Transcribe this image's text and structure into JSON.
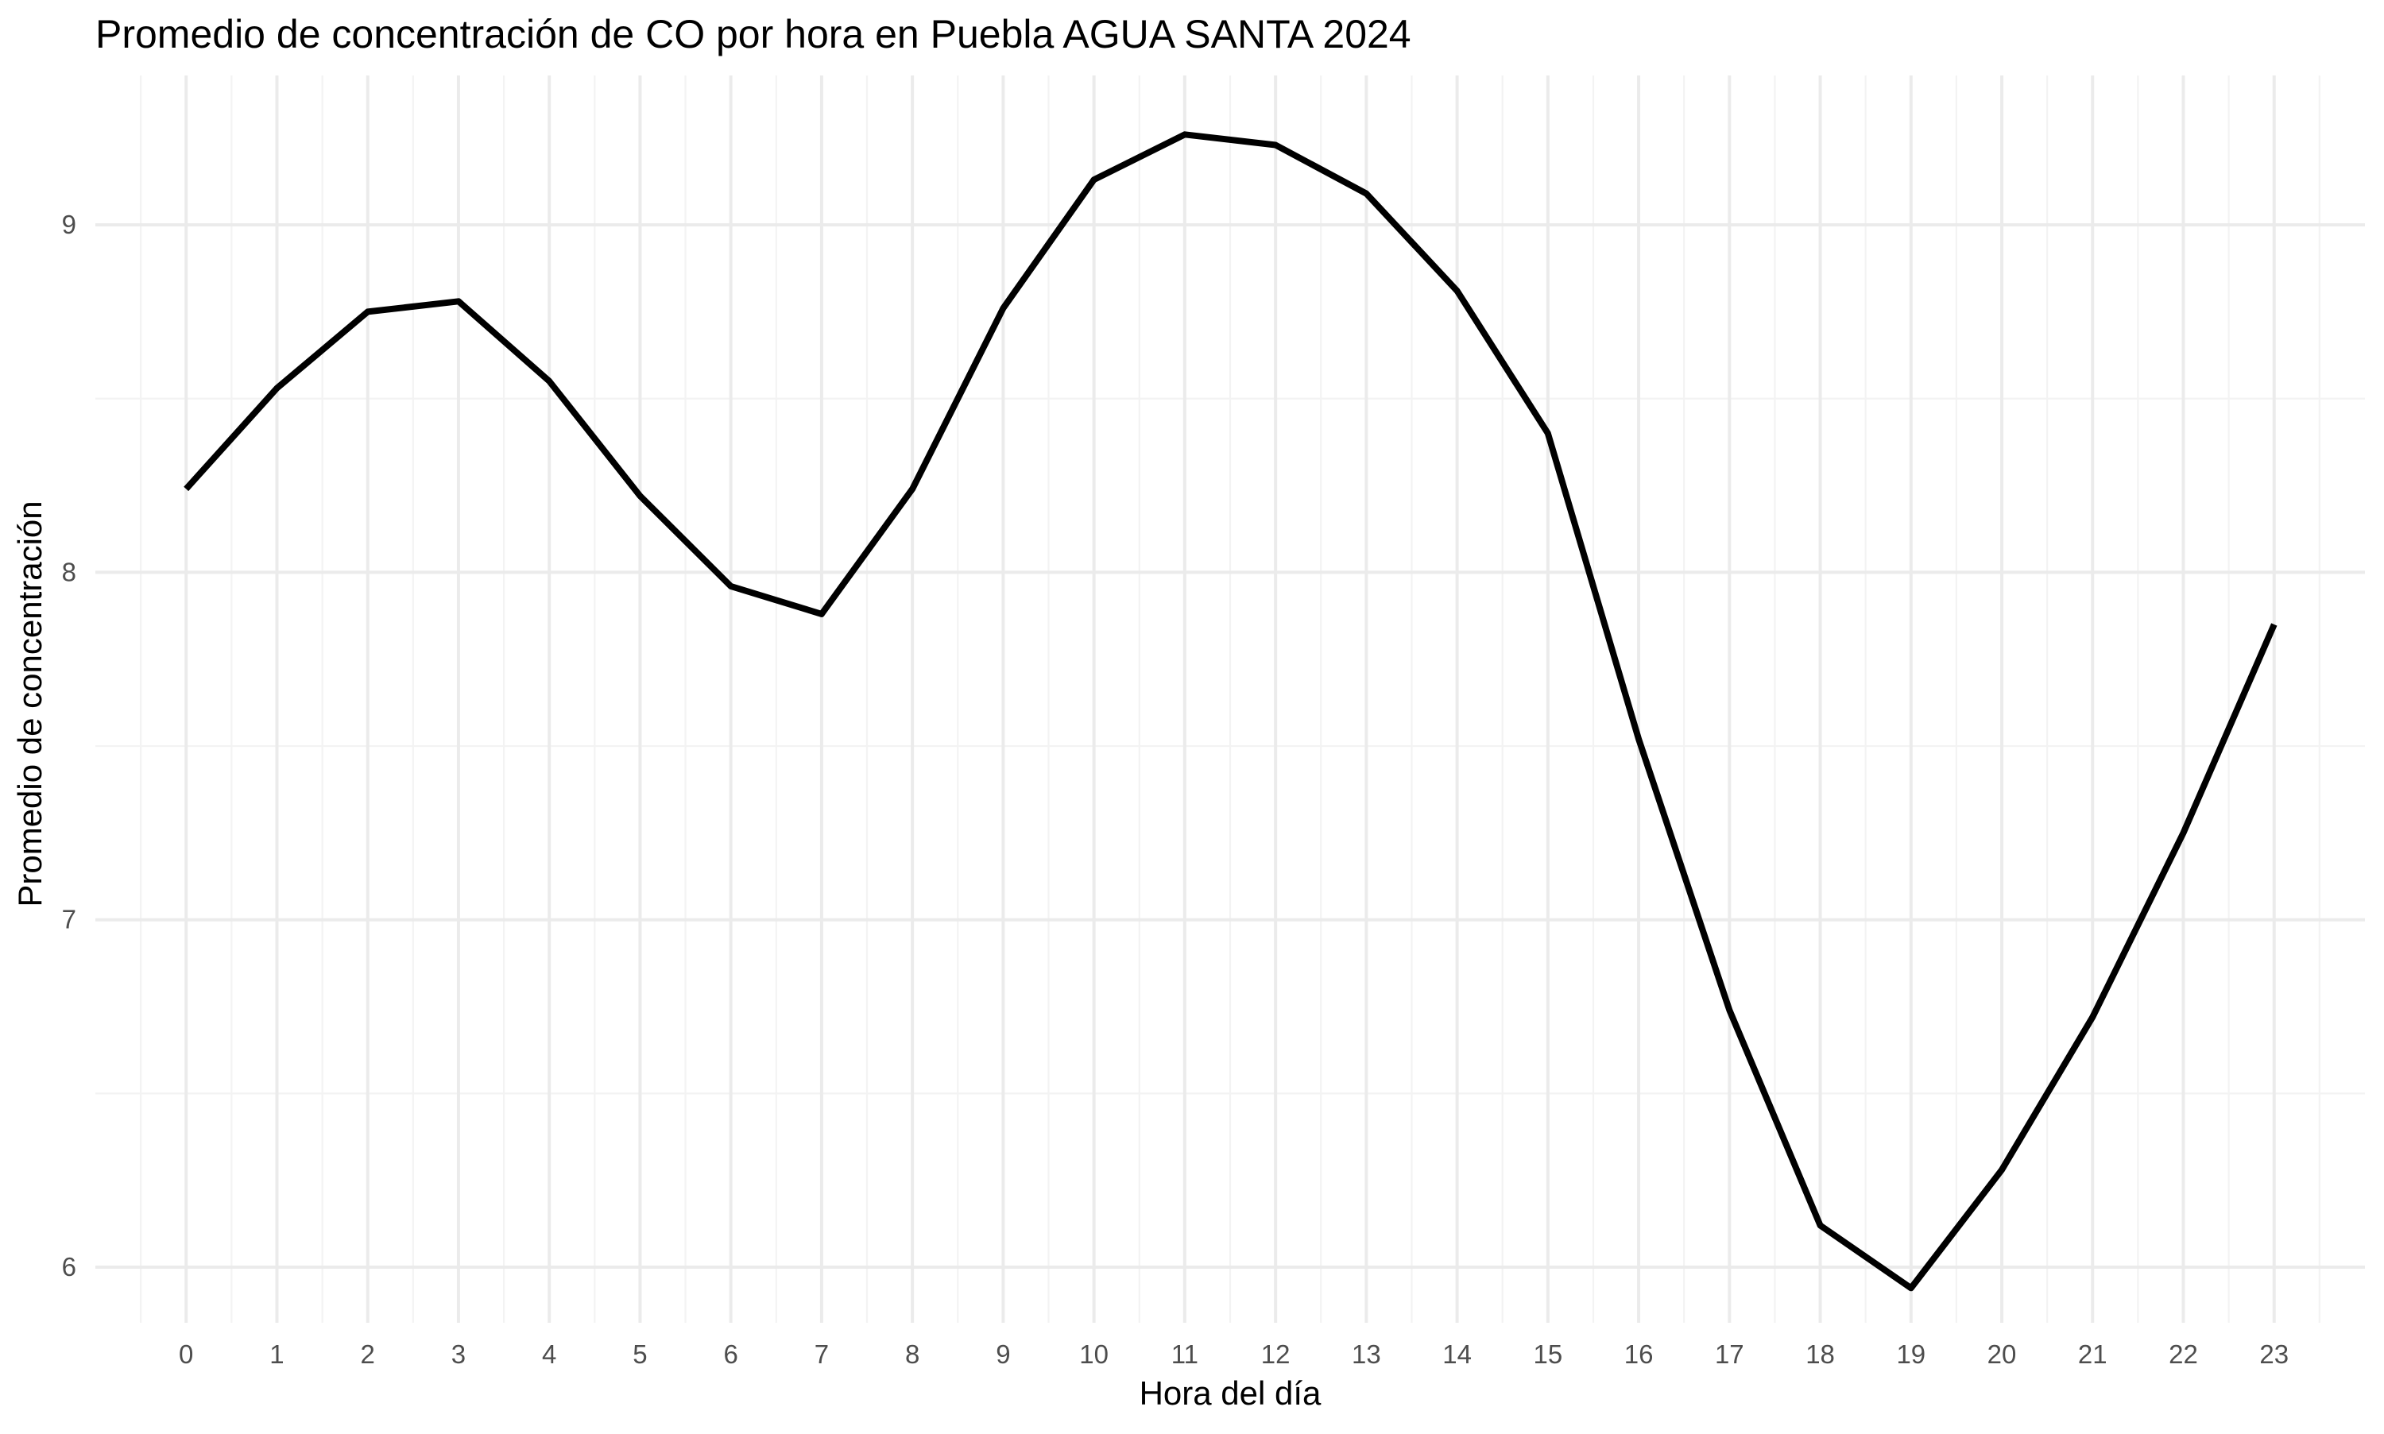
{
  "chart_data": {
    "type": "line",
    "title": "Promedio de concentración de CO por hora en Puebla AGUA SANTA 2024",
    "xlabel": "Hora del día",
    "ylabel": "Promedio de concentración",
    "x": [
      0,
      1,
      2,
      3,
      4,
      5,
      6,
      7,
      8,
      9,
      10,
      11,
      12,
      13,
      14,
      15,
      16,
      17,
      18,
      19,
      20,
      21,
      22,
      23
    ],
    "x_tick_labels": [
      "0",
      "1",
      "2",
      "3",
      "4",
      "5",
      "6",
      "7",
      "8",
      "9",
      "10",
      "11",
      "12",
      "13",
      "14",
      "15",
      "16",
      "17",
      "18",
      "19",
      "20",
      "21",
      "22",
      "23"
    ],
    "series": [
      {
        "values": [
          8.24,
          8.53,
          8.75,
          8.78,
          8.55,
          8.22,
          7.96,
          7.88,
          8.24,
          8.76,
          9.13,
          9.26,
          9.23,
          9.09,
          8.81,
          8.4,
          7.52,
          6.74,
          6.12,
          5.94,
          6.28,
          6.72,
          7.25,
          7.85
        ],
        "color": "#000000"
      }
    ],
    "xlim": [
      -1.0,
      24.0
    ],
    "ylim": [
      5.84,
      9.43
    ],
    "y_ticks": [
      6,
      7,
      8,
      9
    ],
    "y_tick_labels": [
      "6",
      "7",
      "8",
      "9"
    ],
    "grid": true,
    "legend": "none",
    "colors": {
      "background": "#ffffff",
      "grid_major": "#ebebeb",
      "grid_minor": "#f3f3f3",
      "line": "#000000",
      "tick_text": "#4d4d4d"
    }
  }
}
